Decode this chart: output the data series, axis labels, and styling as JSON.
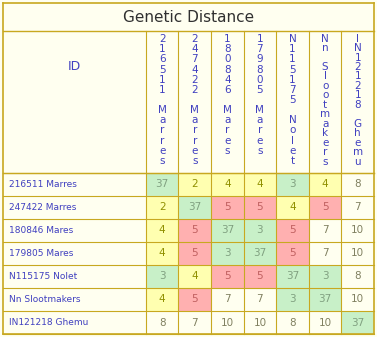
{
  "title": "Genetic Distance",
  "col_header_lines": [
    [
      "2",
      "1",
      "6",
      "5",
      "1",
      "1",
      "",
      "M",
      "a",
      "r",
      "r",
      "e",
      "s"
    ],
    [
      "2",
      "4",
      "7",
      "4",
      "2",
      "2",
      "",
      "M",
      "a",
      "r",
      "r",
      "e",
      "s"
    ],
    [
      "1",
      "8",
      "0",
      "8",
      "4",
      "6",
      "",
      "M",
      "a",
      "r",
      "e",
      "s",
      ""
    ],
    [
      "1",
      "7",
      "9",
      "8",
      "0",
      "5",
      "",
      "M",
      "a",
      "r",
      "e",
      "s",
      ""
    ],
    [
      "N",
      "1",
      "1",
      "5",
      "1",
      "7",
      "5",
      "",
      "N",
      "o",
      "l",
      "e",
      "t"
    ],
    [
      "N",
      "n",
      "",
      "S",
      "l",
      "o",
      "o",
      "t",
      "m",
      "a",
      "k",
      "e",
      "r",
      "s"
    ],
    [
      "I",
      "N",
      "1",
      "2",
      "1",
      "2",
      "1",
      "8",
      "",
      "G",
      "h",
      "e",
      "m",
      "u"
    ]
  ],
  "row_labels": [
    "216511 Marres",
    "247422 Marres",
    "180846 Mares",
    "179805 Mares",
    "N115175 Nolet",
    "Nn Slootmakers",
    "IN121218 Ghemu"
  ],
  "data": [
    [
      37,
      2,
      4,
      4,
      3,
      4,
      8
    ],
    [
      2,
      37,
      5,
      5,
      4,
      5,
      7
    ],
    [
      4,
      5,
      37,
      3,
      5,
      7,
      10
    ],
    [
      4,
      5,
      3,
      37,
      5,
      7,
      10
    ],
    [
      3,
      4,
      5,
      5,
      37,
      3,
      8
    ],
    [
      4,
      5,
      7,
      7,
      3,
      37,
      10
    ],
    [
      8,
      7,
      10,
      10,
      8,
      10,
      37
    ]
  ],
  "cell_colors": [
    [
      "#c8f0c8",
      "#ffffb0",
      "#ffffb0",
      "#ffffb0",
      "#c8f0c8",
      "#ffffb0",
      "#fffff0"
    ],
    [
      "#ffffb0",
      "#c8f0c8",
      "#ffb0b0",
      "#ffb0b0",
      "#ffffb0",
      "#ffb0b0",
      "#fffff0"
    ],
    [
      "#ffffb0",
      "#ffb0b0",
      "#c8f0c8",
      "#c8f0c8",
      "#ffb0b0",
      "#fffff0",
      "#fffff0"
    ],
    [
      "#ffffb0",
      "#ffb0b0",
      "#c8f0c8",
      "#c8f0c8",
      "#ffb0b0",
      "#fffff0",
      "#fffff0"
    ],
    [
      "#c8f0c8",
      "#ffffb0",
      "#ffb0b0",
      "#ffb0b0",
      "#c8f0c8",
      "#c8f0c8",
      "#fffff0"
    ],
    [
      "#ffffb0",
      "#ffb0b0",
      "#fffff0",
      "#fffff0",
      "#c8f0c8",
      "#c8f0c8",
      "#fffff0"
    ],
    [
      "#fffff0",
      "#fffff0",
      "#fffff0",
      "#fffff0",
      "#fffff0",
      "#fffff0",
      "#c8f0c8"
    ]
  ],
  "text_colors": [
    [
      "#80a080",
      "#909000",
      "#909000",
      "#909000",
      "#80a080",
      "#909000",
      "#808060"
    ],
    [
      "#909000",
      "#80a080",
      "#c06060",
      "#c06060",
      "#909000",
      "#c06060",
      "#808060"
    ],
    [
      "#909000",
      "#c06060",
      "#80a080",
      "#80a080",
      "#c06060",
      "#808060",
      "#808060"
    ],
    [
      "#909000",
      "#c06060",
      "#80a080",
      "#80a080",
      "#c06060",
      "#808060",
      "#808060"
    ],
    [
      "#80a080",
      "#909000",
      "#c06060",
      "#c06060",
      "#80a080",
      "#80a080",
      "#808060"
    ],
    [
      "#909000",
      "#c06060",
      "#808060",
      "#808060",
      "#80a080",
      "#80a080",
      "#808060"
    ],
    [
      "#808060",
      "#808060",
      "#808060",
      "#808060",
      "#808060",
      "#808060",
      "#80a080"
    ]
  ],
  "bg_color": "#fffff0",
  "border_color": "#c8a820",
  "header_text_color": "#4040c0",
  "title_color": "#303030",
  "row_label_color": "#4040c0"
}
